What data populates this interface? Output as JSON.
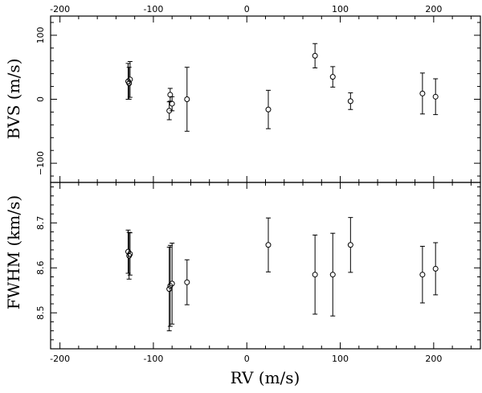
{
  "chart_data": [
    {
      "type": "scatter",
      "panel": "top",
      "xlabel": "",
      "ylabel": "BVS (m/s)",
      "xlim": [
        -210,
        250
      ],
      "ylim": [
        -130,
        130
      ],
      "yticks": [
        -100,
        0,
        100
      ],
      "xticks_top": [
        -200,
        -100,
        0,
        100,
        200
      ],
      "points": [
        {
          "x": -127,
          "y": 28,
          "err": 28
        },
        {
          "x": -126,
          "y": 25,
          "err": 25
        },
        {
          "x": -125,
          "y": 31,
          "err": 28
        },
        {
          "x": -83,
          "y": -18,
          "err": 14
        },
        {
          "x": -82,
          "y": 7,
          "err": 10
        },
        {
          "x": -80,
          "y": -7,
          "err": 11
        },
        {
          "x": -64,
          "y": 0,
          "err": 50
        },
        {
          "x": 23,
          "y": -16,
          "err": 30
        },
        {
          "x": 73,
          "y": 68,
          "err": 19
        },
        {
          "x": 92,
          "y": 35,
          "err": 16
        },
        {
          "x": 111,
          "y": -3,
          "err": 13
        },
        {
          "x": 188,
          "y": 9,
          "err": 32
        },
        {
          "x": 202,
          "y": 4,
          "err": 28
        }
      ]
    },
    {
      "type": "scatter",
      "panel": "bottom",
      "xlabel": "RV (m/s)",
      "ylabel": "FWHM (km/s)",
      "xlim": [
        -210,
        250
      ],
      "ylim": [
        8.42,
        8.79
      ],
      "yticks": [
        8.5,
        8.6,
        8.7
      ],
      "yticklabels": [
        "8.5",
        "8.6",
        "8.7"
      ],
      "xticks": [
        -200,
        -100,
        0,
        100,
        200
      ],
      "points": [
        {
          "x": -127,
          "y": 8.636,
          "err": 0.048
        },
        {
          "x": -126,
          "y": 8.627,
          "err": 0.052
        },
        {
          "x": -125,
          "y": 8.631,
          "err": 0.047
        },
        {
          "x": -83,
          "y": 8.553,
          "err": 0.093
        },
        {
          "x": -82,
          "y": 8.56,
          "err": 0.09
        },
        {
          "x": -80,
          "y": 8.565,
          "err": 0.09
        },
        {
          "x": -64,
          "y": 8.568,
          "err": 0.05
        },
        {
          "x": 23,
          "y": 8.651,
          "err": 0.06
        },
        {
          "x": 73,
          "y": 8.585,
          "err": 0.088
        },
        {
          "x": 92,
          "y": 8.585,
          "err": 0.092
        },
        {
          "x": 111,
          "y": 8.651,
          "err": 0.061
        },
        {
          "x": 188,
          "y": 8.585,
          "err": 0.063
        },
        {
          "x": 202,
          "y": 8.598,
          "err": 0.058
        }
      ]
    }
  ]
}
